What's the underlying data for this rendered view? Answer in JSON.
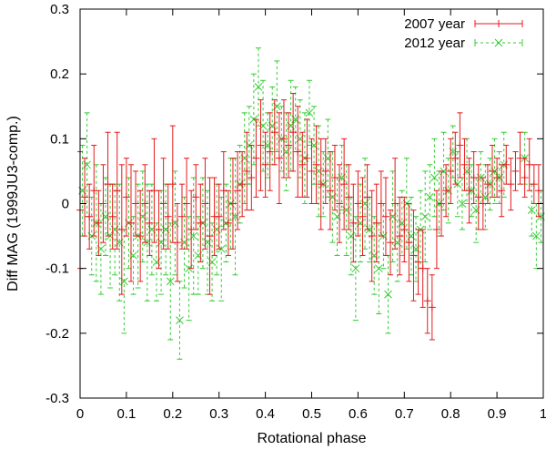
{
  "chart_data": {
    "type": "scatter",
    "title": "",
    "xlabel": "Rotational phase",
    "ylabel": "Diff MAG (1999JU3-comp.)",
    "xlim": [
      0,
      1
    ],
    "ylim": [
      -0.3,
      0.3
    ],
    "xticks": [
      0,
      0.1,
      0.2,
      0.3,
      0.4,
      0.5,
      0.6,
      0.7,
      0.8,
      0.9,
      1
    ],
    "xtick_labels": [
      "0",
      "0.1",
      "0.2",
      "0.3",
      "0.4",
      "0.5",
      "0.6",
      "0.7",
      "0.8",
      "0.9",
      "1"
    ],
    "yticks": [
      -0.3,
      -0.2,
      -0.1,
      0,
      0.1,
      0.2,
      0.3
    ],
    "ytick_labels": [
      "-0.3",
      "-0.2",
      "-0.1",
      "0",
      "0.1",
      "0.2",
      "0.3"
    ],
    "legend_position": "top-right",
    "series": [
      {
        "name": "2007 year",
        "color": "#e41a1c",
        "marker": "plus",
        "errorbar_style": "solid",
        "x": [
          0.0,
          0.01,
          0.02,
          0.03,
          0.04,
          0.05,
          0.06,
          0.07,
          0.08,
          0.09,
          0.1,
          0.11,
          0.12,
          0.13,
          0.14,
          0.15,
          0.16,
          0.17,
          0.18,
          0.19,
          0.2,
          0.21,
          0.22,
          0.23,
          0.24,
          0.25,
          0.26,
          0.27,
          0.28,
          0.29,
          0.3,
          0.31,
          0.32,
          0.33,
          0.34,
          0.35,
          0.36,
          0.37,
          0.38,
          0.39,
          0.4,
          0.41,
          0.42,
          0.43,
          0.44,
          0.45,
          0.46,
          0.47,
          0.48,
          0.49,
          0.5,
          0.51,
          0.52,
          0.53,
          0.54,
          0.55,
          0.56,
          0.57,
          0.58,
          0.59,
          0.6,
          0.61,
          0.62,
          0.63,
          0.64,
          0.65,
          0.66,
          0.67,
          0.68,
          0.69,
          0.7,
          0.71,
          0.72,
          0.73,
          0.74,
          0.75,
          0.76,
          0.77,
          0.78,
          0.79,
          0.8,
          0.81,
          0.82,
          0.83,
          0.84,
          0.85,
          0.86,
          0.87,
          0.88,
          0.89,
          0.9,
          0.91,
          0.92,
          0.93,
          0.94,
          0.95,
          0.96,
          0.97,
          0.98,
          0.99
        ],
        "y": [
          -0.01,
          0.01,
          -0.02,
          0.02,
          -0.03,
          0.0,
          0.03,
          -0.02,
          0.02,
          -0.04,
          0.01,
          -0.03,
          0.0,
          -0.05,
          0.0,
          -0.03,
          0.02,
          -0.04,
          0.0,
          -0.02,
          0.03,
          -0.06,
          -0.02,
          0.0,
          -0.04,
          0.01,
          -0.03,
          0.0,
          -0.05,
          -0.02,
          -0.02,
          0.02,
          -0.03,
          0.0,
          0.02,
          0.03,
          0.05,
          0.04,
          0.07,
          0.09,
          0.06,
          0.08,
          0.11,
          0.07,
          0.1,
          0.09,
          0.11,
          0.08,
          0.06,
          0.07,
          0.05,
          0.06,
          0.03,
          0.05,
          0.02,
          0.04,
          0.0,
          0.03,
          0.01,
          -0.03,
          0.0,
          -0.02,
          0.01,
          -0.05,
          -0.03,
          0.0,
          -0.02,
          -0.06,
          0.0,
          -0.05,
          -0.04,
          -0.06,
          -0.08,
          -0.09,
          -0.1,
          -0.15,
          -0.16,
          -0.04,
          0.0,
          0.02,
          0.05,
          0.07,
          0.09,
          0.06,
          0.02,
          0.04,
          0.01,
          0.0,
          0.03,
          0.05,
          0.04,
          0.02,
          0.06,
          0.03,
          0.05,
          0.07,
          0.04,
          0.06,
          0.03,
          0.02
        ],
        "err": [
          0.09,
          0.06,
          0.05,
          0.07,
          0.05,
          0.06,
          0.08,
          0.05,
          0.09,
          0.1,
          0.06,
          0.09,
          0.05,
          0.07,
          0.06,
          0.05,
          0.08,
          0.06,
          0.07,
          0.05,
          0.09,
          0.06,
          0.05,
          0.07,
          0.06,
          0.05,
          0.06,
          0.07,
          0.09,
          0.06,
          0.05,
          0.06,
          0.05,
          0.07,
          0.06,
          0.05,
          0.06,
          0.05,
          0.06,
          0.07,
          0.05,
          0.06,
          0.05,
          0.07,
          0.06,
          0.05,
          0.06,
          0.07,
          0.05,
          0.06,
          0.05,
          0.06,
          0.07,
          0.05,
          0.06,
          0.05,
          0.06,
          0.07,
          0.05,
          0.06,
          0.05,
          0.06,
          0.05,
          0.07,
          0.06,
          0.05,
          0.06,
          0.05,
          0.07,
          0.06,
          0.05,
          0.06,
          0.07,
          0.05,
          0.06,
          0.05,
          0.05,
          0.06,
          0.05,
          0.04,
          0.05,
          0.04,
          0.05,
          0.04,
          0.05,
          0.04,
          0.05,
          0.04,
          0.03,
          0.04,
          0.03,
          0.04,
          0.03,
          0.04,
          0.03,
          0.04,
          0.03,
          0.04,
          0.03,
          0.04
        ]
      },
      {
        "name": "2012 year",
        "color": "#33cc33",
        "marker": "cross",
        "errorbar_style": "dashed",
        "x": [
          0.005,
          0.015,
          0.025,
          0.035,
          0.045,
          0.055,
          0.065,
          0.075,
          0.085,
          0.095,
          0.105,
          0.115,
          0.125,
          0.135,
          0.145,
          0.155,
          0.165,
          0.175,
          0.185,
          0.195,
          0.205,
          0.215,
          0.225,
          0.235,
          0.245,
          0.255,
          0.265,
          0.275,
          0.285,
          0.295,
          0.305,
          0.315,
          0.325,
          0.335,
          0.345,
          0.355,
          0.365,
          0.375,
          0.385,
          0.395,
          0.405,
          0.415,
          0.425,
          0.435,
          0.445,
          0.455,
          0.465,
          0.475,
          0.485,
          0.495,
          0.505,
          0.515,
          0.525,
          0.535,
          0.545,
          0.555,
          0.565,
          0.575,
          0.585,
          0.595,
          0.605,
          0.615,
          0.625,
          0.635,
          0.645,
          0.655,
          0.665,
          0.675,
          0.685,
          0.695,
          0.705,
          0.715,
          0.725,
          0.735,
          0.745,
          0.755,
          0.765,
          0.775,
          0.785,
          0.795,
          0.805,
          0.815,
          0.825,
          0.835,
          0.845,
          0.855,
          0.865,
          0.875,
          0.885,
          0.895,
          0.905,
          0.915,
          0.96,
          0.975,
          0.985,
          0.995
        ],
        "y": [
          0.02,
          0.06,
          -0.05,
          -0.03,
          -0.07,
          -0.02,
          -0.05,
          -0.04,
          -0.06,
          -0.12,
          -0.03,
          -0.08,
          -0.05,
          -0.02,
          -0.06,
          -0.04,
          -0.09,
          -0.06,
          -0.04,
          -0.12,
          -0.03,
          -0.18,
          -0.06,
          -0.1,
          -0.05,
          -0.08,
          -0.03,
          -0.06,
          -0.09,
          -0.04,
          -0.07,
          -0.03,
          0.0,
          -0.02,
          0.03,
          0.07,
          0.09,
          0.13,
          0.18,
          0.12,
          0.09,
          0.12,
          0.15,
          0.1,
          0.08,
          0.12,
          0.13,
          0.1,
          0.07,
          0.14,
          0.09,
          0.05,
          0.03,
          0.07,
          0.01,
          -0.02,
          0.04,
          -0.01,
          -0.05,
          -0.1,
          -0.03,
          0.0,
          -0.04,
          -0.08,
          -0.1,
          -0.05,
          -0.14,
          -0.02,
          -0.06,
          -0.03,
          0.0,
          -0.05,
          -0.07,
          -0.04,
          -0.02,
          0.01,
          0.04,
          0.0,
          0.05,
          0.02,
          0.08,
          0.03,
          0.0,
          0.05,
          0.02,
          -0.01,
          0.04,
          0.01,
          0.03,
          0.05,
          0.04,
          0.06,
          0.07,
          -0.01,
          -0.05,
          -0.02
        ],
        "err": [
          0.07,
          0.08,
          0.06,
          0.09,
          0.07,
          0.06,
          0.08,
          0.07,
          0.09,
          0.08,
          0.07,
          0.06,
          0.08,
          0.07,
          0.09,
          0.07,
          0.06,
          0.08,
          0.07,
          0.09,
          0.08,
          0.06,
          0.07,
          0.08,
          0.09,
          0.06,
          0.07,
          0.08,
          0.06,
          0.07,
          0.08,
          0.06,
          0.07,
          0.09,
          0.06,
          0.07,
          0.06,
          0.07,
          0.06,
          0.07,
          0.05,
          0.06,
          0.07,
          0.05,
          0.06,
          0.07,
          0.05,
          0.06,
          0.07,
          0.05,
          0.06,
          0.07,
          0.05,
          0.06,
          0.07,
          0.06,
          0.05,
          0.07,
          0.06,
          0.08,
          0.06,
          0.07,
          0.05,
          0.06,
          0.07,
          0.05,
          0.06,
          0.07,
          0.06,
          0.05,
          0.07,
          0.06,
          0.05,
          0.06,
          0.07,
          0.05,
          0.06,
          0.05,
          0.06,
          0.05,
          0.04,
          0.05,
          0.04,
          0.05,
          0.04,
          0.05,
          0.04,
          0.05,
          0.04,
          0.05,
          0.04,
          0.05,
          0.04,
          0.04,
          0.05,
          0.04
        ]
      }
    ]
  }
}
